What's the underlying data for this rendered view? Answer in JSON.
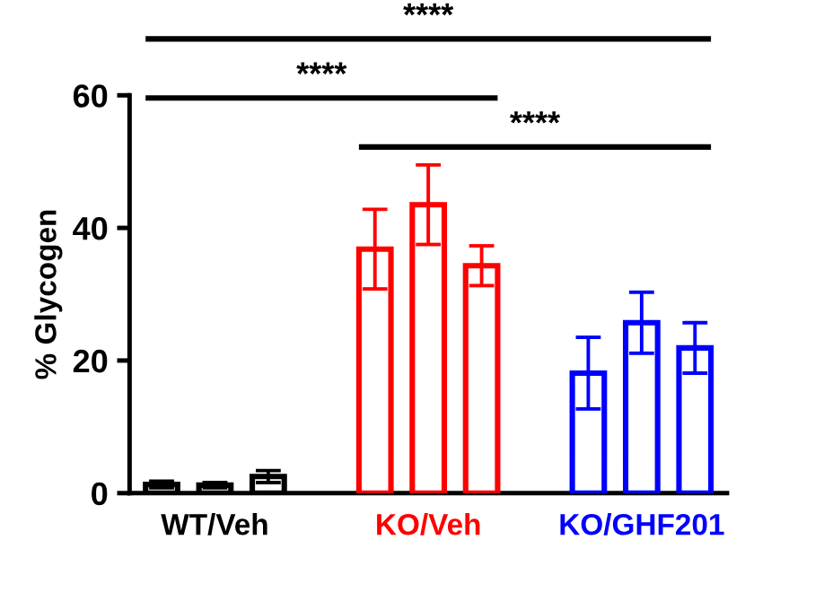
{
  "chart_data": {
    "type": "bar",
    "ylabel": "% Glycogen",
    "categories": [
      null,
      "WT/Veh",
      null,
      null,
      null,
      "KO/Veh",
      null,
      null,
      null,
      "KO/GHF201",
      null
    ],
    "values": [
      1.3,
      1.2,
      2.5,
      null,
      36.8,
      43.5,
      34.3,
      null,
      18.1,
      25.7,
      21.9
    ],
    "errors": [
      0.5,
      0.4,
      0.9,
      null,
      6,
      6,
      3,
      null,
      5.4,
      4.6,
      3.8
    ],
    "colors": [
      "#000000",
      "#000000",
      "#000000",
      "#ffffff",
      "#ff0000",
      "#ff0000",
      "#ff0000",
      "#ffffff",
      "#0000ff",
      "#0000ff",
      "#0000ff"
    ],
    "ylim": [
      0,
      60
    ],
    "yticks": [
      0,
      20,
      40,
      60
    ],
    "annotations": [
      "****",
      "****",
      "****"
    ],
    "grid": false,
    "legend": false
  }
}
